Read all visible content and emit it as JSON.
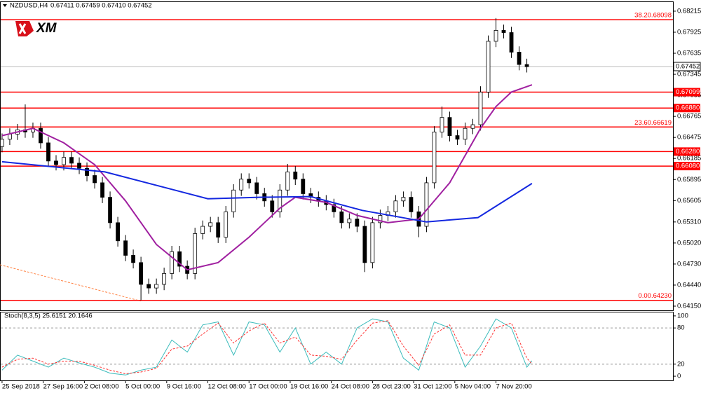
{
  "chart_data": [
    {
      "type": "candlestick",
      "header": {
        "symbol": "NZDUSD,H4",
        "quote": "0.67411 0.67459 0.67410 0.67452"
      },
      "logo": "XM",
      "xlim": [
        -0.8,
        260.8
      ],
      "xticks": [
        {
          "value": 0,
          "label": "25 Sep 2018"
        },
        {
          "value": 16,
          "label": "27 Sep 16:00"
        },
        {
          "value": 32,
          "label": "2 Oct 08:00"
        },
        {
          "value": 48,
          "label": "5 Oct 00:00"
        },
        {
          "value": 64,
          "label": "9 Oct 16:00"
        },
        {
          "value": 80,
          "label": "12 Oct 08:00"
        },
        {
          "value": 96,
          "label": "17 Oct 00:00"
        },
        {
          "value": 112,
          "label": "19 Oct 16:00"
        },
        {
          "value": 128,
          "label": "24 Oct 08:00"
        },
        {
          "value": 144,
          "label": "28 Oct 23:00"
        },
        {
          "value": 160,
          "label": "31 Oct 12:00"
        },
        {
          "value": 176,
          "label": "5 Nov 04:00"
        },
        {
          "value": 192,
          "label": "7 Nov 20:00"
        }
      ],
      "ylim": [
        0.64092,
        0.6834
      ],
      "yticks": [
        0.68215,
        0.67925,
        0.67635,
        0.67345,
        0.67055,
        0.66765,
        0.66475,
        0.66185,
        0.65895,
        0.65605,
        {
          "value": 0.6531,
          "label": "0.65310"
        },
        {
          "value": 0.6502,
          "label": "0.65020"
        },
        {
          "value": 0.6473,
          "label": "0.64730"
        },
        {
          "value": 0.6444,
          "label": "0.64440"
        },
        {
          "value": 0.6415,
          "label": "0.64150"
        }
      ],
      "levels": [
        {
          "value": 0.68098,
          "label": "38.20.68098",
          "style": "text"
        },
        {
          "value": 0.67099,
          "label": "0.67099",
          "style": "box"
        },
        {
          "value": 0.6688,
          "label": "0.66880",
          "style": "box"
        },
        {
          "value": 0.66619,
          "label": "23.60.66619",
          "style": "text"
        },
        {
          "value": 0.6628,
          "label": "0.66280",
          "style": "box"
        },
        {
          "value": 0.6608,
          "label": "0.66080",
          "style": "box"
        },
        {
          "value": 0.6423,
          "label": "0.00.64230",
          "style": "text"
        }
      ],
      "level_color": "#ff0000",
      "last_price": 0.67452,
      "candles": {
        "x": [
          0,
          3,
          6,
          9,
          12,
          15,
          18,
          21,
          24,
          27,
          30,
          33,
          36,
          39,
          42,
          45,
          48,
          51,
          54,
          57,
          60,
          63,
          66,
          69,
          72,
          75,
          78,
          81,
          84,
          87,
          90,
          93,
          96,
          99,
          102,
          105,
          108,
          111,
          114,
          117,
          120,
          123,
          126,
          129,
          132,
          135,
          138,
          141,
          144,
          147,
          150,
          153,
          156,
          159,
          162,
          165,
          168,
          171,
          174,
          177,
          180,
          183,
          186,
          189,
          192,
          195,
          198,
          201,
          204
        ],
        "open": [
          0.6635,
          0.6645,
          0.6652,
          0.6658,
          0.6655,
          0.666,
          0.664,
          0.6615,
          0.661,
          0.662,
          0.6612,
          0.6605,
          0.6595,
          0.6585,
          0.6565,
          0.653,
          0.6505,
          0.6485,
          0.6475,
          0.6445,
          0.644,
          0.6445,
          0.646,
          0.649,
          0.647,
          0.646,
          0.6515,
          0.6525,
          0.653,
          0.651,
          0.6545,
          0.6575,
          0.659,
          0.6585,
          0.657,
          0.656,
          0.6545,
          0.6575,
          0.66,
          0.659,
          0.657,
          0.6565,
          0.656,
          0.6555,
          0.6545,
          0.653,
          0.6535,
          0.6525,
          0.6475,
          0.653,
          0.654,
          0.6545,
          0.656,
          0.6565,
          0.6545,
          0.6525,
          0.6585,
          0.6655,
          0.6675,
          0.665,
          0.6645,
          0.666,
          0.6665,
          0.671,
          0.678,
          0.6795,
          0.6792,
          0.6765,
          0.6748
        ],
        "high": [
          0.6653,
          0.666,
          0.6666,
          0.6693,
          0.6668,
          0.6668,
          0.6648,
          0.6623,
          0.6628,
          0.6628,
          0.662,
          0.6613,
          0.6603,
          0.6593,
          0.6573,
          0.6538,
          0.6513,
          0.6493,
          0.6483,
          0.6453,
          0.6453,
          0.6468,
          0.6498,
          0.6498,
          0.6478,
          0.6523,
          0.6533,
          0.6538,
          0.6538,
          0.6553,
          0.6583,
          0.6598,
          0.6598,
          0.6593,
          0.6578,
          0.6568,
          0.6583,
          0.6611,
          0.6608,
          0.6598,
          0.6578,
          0.6573,
          0.6568,
          0.6563,
          0.6553,
          0.6543,
          0.6543,
          0.6533,
          0.6538,
          0.6548,
          0.6553,
          0.6568,
          0.6573,
          0.6573,
          0.6553,
          0.6593,
          0.6663,
          0.669,
          0.6683,
          0.6658,
          0.6668,
          0.6673,
          0.6718,
          0.6788,
          0.6812,
          0.6803,
          0.68,
          0.6773,
          0.6756
        ],
        "low": [
          0.6627,
          0.6637,
          0.6644,
          0.6647,
          0.6647,
          0.6632,
          0.6607,
          0.6602,
          0.6602,
          0.6604,
          0.6597,
          0.6587,
          0.6577,
          0.6557,
          0.6522,
          0.6497,
          0.6477,
          0.6467,
          0.6423,
          0.6432,
          0.6432,
          0.6437,
          0.6452,
          0.6462,
          0.6452,
          0.6452,
          0.6507,
          0.6517,
          0.6502,
          0.6502,
          0.6537,
          0.6567,
          0.6577,
          0.6562,
          0.6552,
          0.6537,
          0.6537,
          0.6567,
          0.6582,
          0.6562,
          0.6557,
          0.6552,
          0.6547,
          0.6537,
          0.6522,
          0.6522,
          0.6517,
          0.6462,
          0.6467,
          0.6522,
          0.6532,
          0.6537,
          0.6552,
          0.6537,
          0.651,
          0.6517,
          0.6577,
          0.6647,
          0.6642,
          0.6637,
          0.6637,
          0.6652,
          0.6657,
          0.6702,
          0.6772,
          0.6784,
          0.6757,
          0.674,
          0.6737
        ],
        "close": [
          0.6645,
          0.6652,
          0.6658,
          0.6655,
          0.666,
          0.664,
          0.6615,
          0.661,
          0.662,
          0.6612,
          0.6605,
          0.6595,
          0.6585,
          0.6565,
          0.653,
          0.6505,
          0.6485,
          0.6475,
          0.6445,
          0.644,
          0.6445,
          0.646,
          0.649,
          0.647,
          0.646,
          0.6515,
          0.6525,
          0.653,
          0.651,
          0.6545,
          0.6575,
          0.659,
          0.6585,
          0.657,
          0.656,
          0.6545,
          0.6575,
          0.66,
          0.659,
          0.657,
          0.6565,
          0.656,
          0.6555,
          0.6545,
          0.653,
          0.6535,
          0.6525,
          0.6475,
          0.653,
          0.654,
          0.6545,
          0.656,
          0.6565,
          0.6545,
          0.6525,
          0.6585,
          0.6655,
          0.6675,
          0.665,
          0.6645,
          0.666,
          0.6665,
          0.671,
          0.678,
          0.6795,
          0.6792,
          0.6765,
          0.6748,
          0.6745
        ]
      },
      "lines": [
        {
          "color": "#a020a0",
          "x": [
            0,
            12,
            24,
            36,
            48,
            60,
            72,
            84,
            96,
            108,
            114,
            126,
            138,
            150,
            162,
            174,
            186,
            192,
            198,
            206
          ],
          "values": [
            0.665,
            0.666,
            0.664,
            0.661,
            0.656,
            0.65,
            0.6465,
            0.6475,
            0.651,
            0.655,
            0.6565,
            0.6558,
            0.654,
            0.653,
            0.6535,
            0.6585,
            0.666,
            0.669,
            0.671,
            0.672
          ]
        },
        {
          "color": "#1428e0",
          "x": [
            0,
            40,
            80,
            100,
            120,
            140,
            165,
            185,
            206
          ],
          "values": [
            0.6614,
            0.66,
            0.6563,
            0.6565,
            0.6566,
            0.6547,
            0.6531,
            0.6537,
            0.6584
          ]
        }
      ],
      "trendline": {
        "color": "#ff7f3f",
        "x": [
          -0.8,
          54
        ],
        "values": [
          0.6472,
          0.6422
        ]
      }
    },
    {
      "type": "line",
      "title": "Stoch(8,3,5) 25.6151 20.1646",
      "ylim": [
        -6.9,
        105.7
      ],
      "yticks": [
        0,
        20,
        80,
        100
      ],
      "levels": [
        20,
        80
      ],
      "series": [
        {
          "color": "#3cbcbc",
          "dash": false,
          "x": [
            0,
            6,
            12,
            18,
            24,
            30,
            36,
            42,
            48,
            54,
            60,
            66,
            72,
            78,
            84,
            90,
            96,
            102,
            108,
            114,
            120,
            126,
            132,
            138,
            144,
            150,
            156,
            162,
            168,
            174,
            180,
            186,
            192,
            198,
            204,
            206
          ],
          "values": [
            10,
            35,
            25,
            15,
            30,
            22,
            15,
            5,
            2,
            10,
            15,
            60,
            40,
            85,
            90,
            35,
            90,
            85,
            40,
            80,
            20,
            40,
            20,
            80,
            95,
            90,
            30,
            10,
            90,
            80,
            15,
            50,
            95,
            80,
            15,
            25.6151
          ]
        },
        {
          "color": "#ff3030",
          "dash": true,
          "x": [
            0,
            6,
            12,
            18,
            24,
            30,
            36,
            42,
            48,
            54,
            60,
            66,
            72,
            78,
            84,
            90,
            96,
            102,
            108,
            114,
            120,
            126,
            132,
            138,
            144,
            150,
            156,
            162,
            168,
            174,
            180,
            186,
            192,
            198,
            204,
            206
          ],
          "values": [
            15,
            28,
            30,
            20,
            25,
            25,
            18,
            10,
            4,
            7,
            13,
            45,
            50,
            70,
            88,
            55,
            75,
            88,
            55,
            65,
            35,
            33,
            28,
            60,
            88,
            92,
            50,
            18,
            70,
            85,
            35,
            35,
            80,
            88,
            30,
            20.1646
          ]
        }
      ]
    }
  ]
}
